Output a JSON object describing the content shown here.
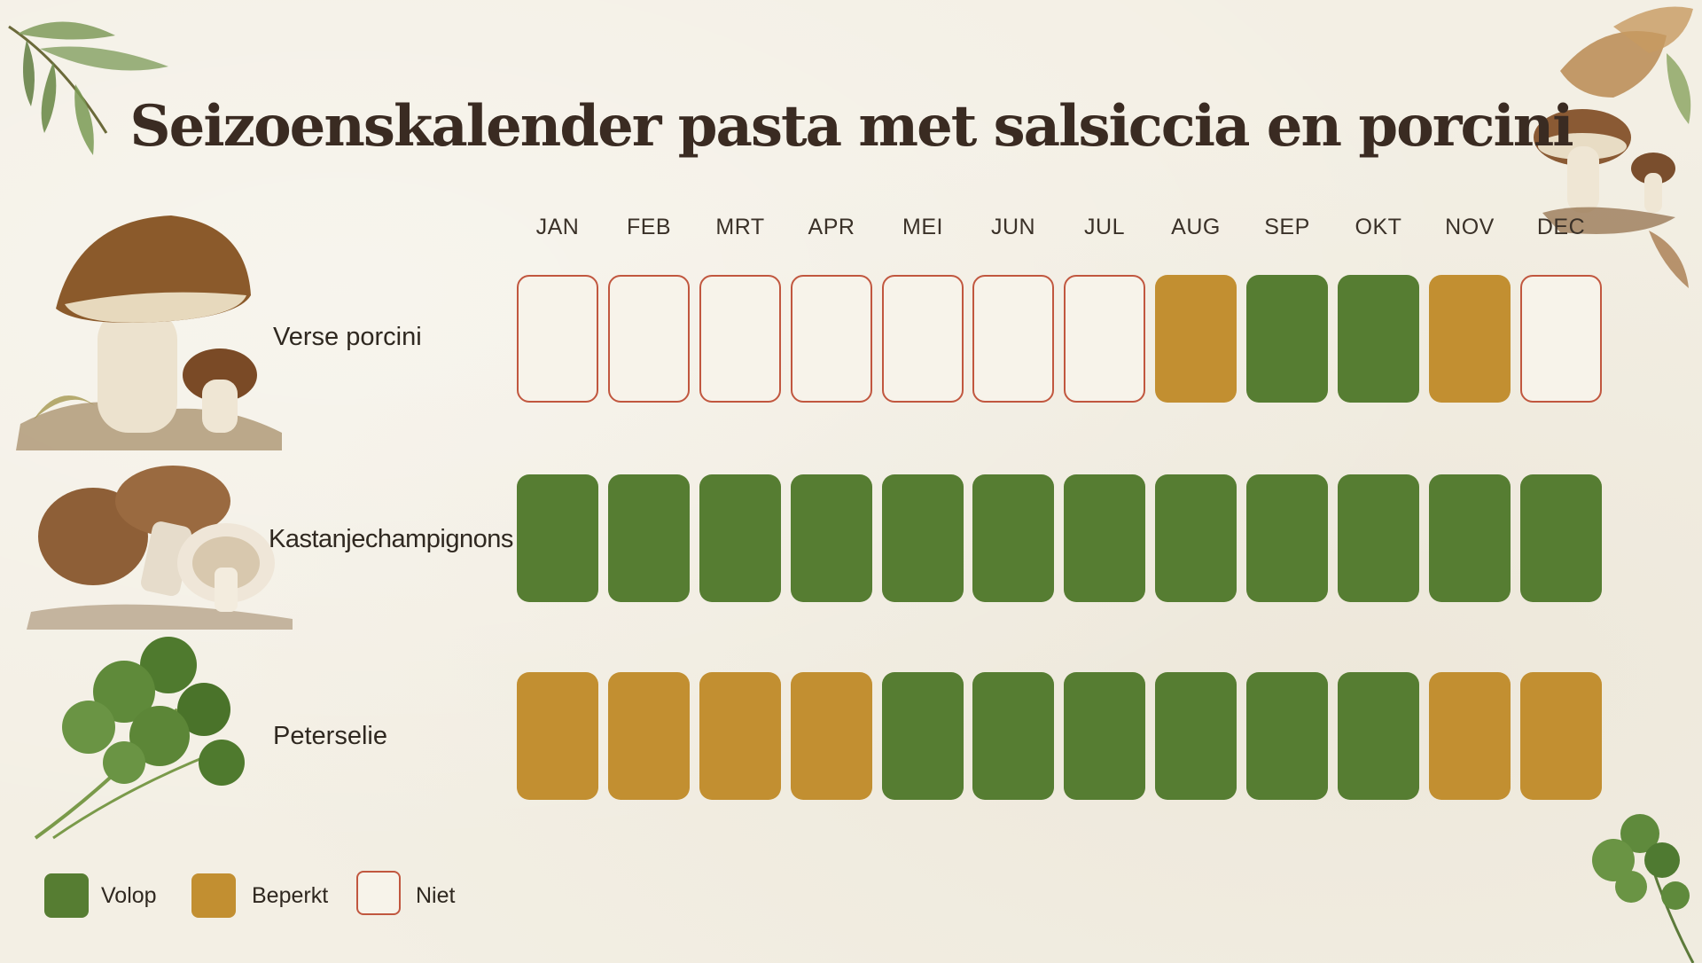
{
  "title": "Seizoenskalender pasta met salsiccia en porcini",
  "months": [
    "JAN",
    "FEB",
    "MRT",
    "APR",
    "MEI",
    "JUN",
    "JUL",
    "AUG",
    "SEP",
    "OKT",
    "NOV",
    "DEC"
  ],
  "rows": [
    {
      "label": "Verse porcini",
      "image": "porcini-mushroom-illustration",
      "status": [
        "niet",
        "niet",
        "niet",
        "niet",
        "niet",
        "niet",
        "niet",
        "beperkt",
        "volop",
        "volop",
        "beperkt",
        "niet"
      ]
    },
    {
      "label": "Kastanjechampignons",
      "image": "chestnut-mushroom-illustration",
      "status": [
        "volop",
        "volop",
        "volop",
        "volop",
        "volop",
        "volop",
        "volop",
        "volop",
        "volop",
        "volop",
        "volop",
        "volop"
      ]
    },
    {
      "label": "Peterselie",
      "image": "parsley-illustration",
      "status": [
        "beperkt",
        "beperkt",
        "beperkt",
        "beperkt",
        "volop",
        "volop",
        "volop",
        "volop",
        "volop",
        "volop",
        "beperkt",
        "beperkt"
      ]
    }
  ],
  "legend": {
    "volop": "Volop",
    "beperkt": "Beperkt",
    "niet": "Niet"
  },
  "colors": {
    "volop": "#567d32",
    "beperkt": "#c28f31",
    "niet_border": "#c1573f",
    "background": "#f3efe4",
    "title": "#3a2b22"
  }
}
